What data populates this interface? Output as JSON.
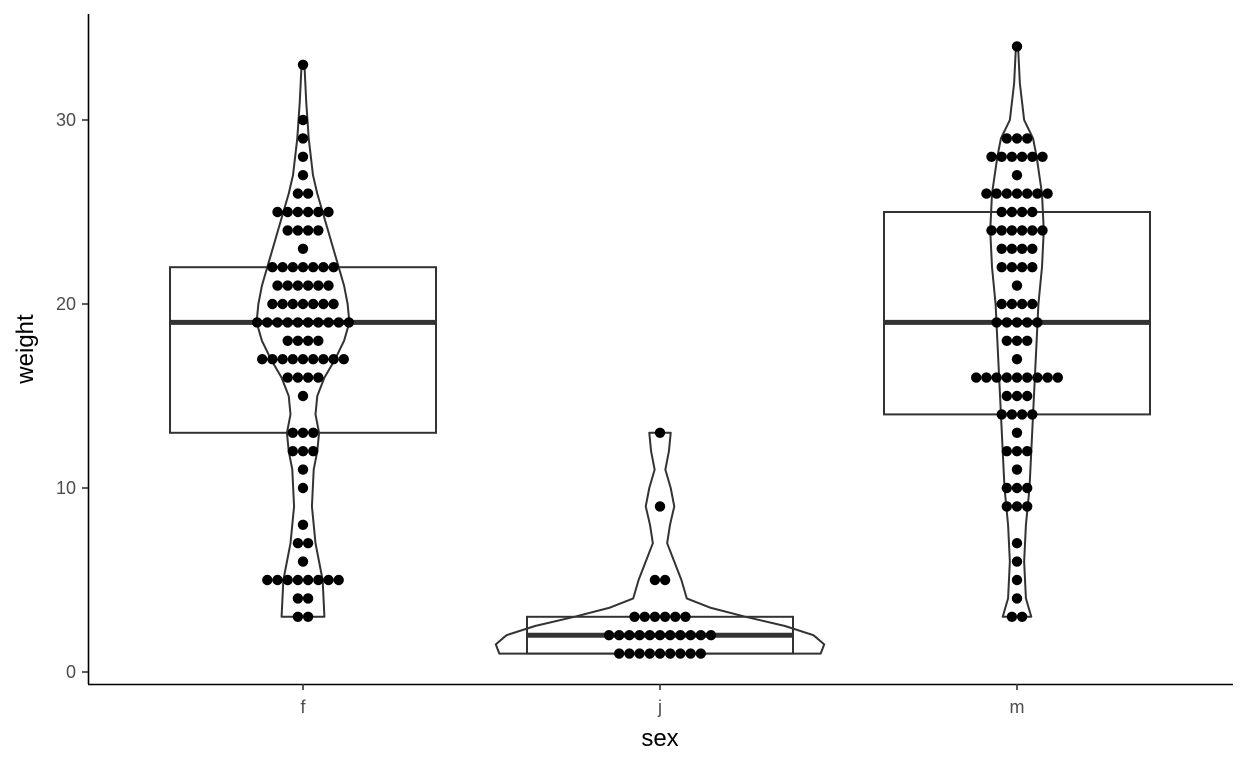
{
  "chart_data": {
    "type": "box",
    "overlays": [
      "violin",
      "dotplot"
    ],
    "xlabel": "sex",
    "ylabel": "weight",
    "categories": [
      "f",
      "j",
      "m"
    ],
    "yticks": [
      0,
      10,
      20,
      30
    ],
    "ylim": [
      -0.6,
      35.5
    ],
    "grid": false,
    "legend": "none",
    "boxes": [
      {
        "category": "f",
        "q1": 13,
        "median": 19,
        "q3": 22
      },
      {
        "category": "j",
        "q1": 1,
        "median": 2,
        "q3": 3
      },
      {
        "category": "m",
        "q1": 14,
        "median": 19,
        "q3": 25
      }
    ],
    "points": {
      "f": [
        {
          "y": 3,
          "n": 2
        },
        {
          "y": 4,
          "n": 2
        },
        {
          "y": 5,
          "n": 8
        },
        {
          "y": 6,
          "n": 1
        },
        {
          "y": 7,
          "n": 2
        },
        {
          "y": 8,
          "n": 1
        },
        {
          "y": 10,
          "n": 1
        },
        {
          "y": 11,
          "n": 1
        },
        {
          "y": 12,
          "n": 3
        },
        {
          "y": 13,
          "n": 3
        },
        {
          "y": 15,
          "n": 1
        },
        {
          "y": 16,
          "n": 4
        },
        {
          "y": 17,
          "n": 9
        },
        {
          "y": 18,
          "n": 4
        },
        {
          "y": 19,
          "n": 10
        },
        {
          "y": 20,
          "n": 7
        },
        {
          "y": 21,
          "n": 6
        },
        {
          "y": 22,
          "n": 7
        },
        {
          "y": 23,
          "n": 1
        },
        {
          "y": 24,
          "n": 4
        },
        {
          "y": 25,
          "n": 6
        },
        {
          "y": 26,
          "n": 2
        },
        {
          "y": 27,
          "n": 1
        },
        {
          "y": 28,
          "n": 1
        },
        {
          "y": 29,
          "n": 1
        },
        {
          "y": 30,
          "n": 1
        },
        {
          "y": 33,
          "n": 1
        }
      ],
      "j": [
        {
          "y": 1,
          "n": 9
        },
        {
          "y": 2,
          "n": 11
        },
        {
          "y": 3,
          "n": 6
        },
        {
          "y": 5,
          "n": 2
        },
        {
          "y": 9,
          "n": 1
        },
        {
          "y": 13,
          "n": 1
        }
      ],
      "m": [
        {
          "y": 3,
          "n": 2
        },
        {
          "y": 4,
          "n": 1
        },
        {
          "y": 5,
          "n": 1
        },
        {
          "y": 6,
          "n": 1
        },
        {
          "y": 7,
          "n": 1
        },
        {
          "y": 9,
          "n": 3
        },
        {
          "y": 10,
          "n": 3
        },
        {
          "y": 11,
          "n": 1
        },
        {
          "y": 12,
          "n": 3
        },
        {
          "y": 13,
          "n": 1
        },
        {
          "y": 14,
          "n": 4
        },
        {
          "y": 15,
          "n": 3
        },
        {
          "y": 16,
          "n": 9
        },
        {
          "y": 17,
          "n": 1
        },
        {
          "y": 18,
          "n": 3
        },
        {
          "y": 19,
          "n": 5
        },
        {
          "y": 20,
          "n": 4
        },
        {
          "y": 21,
          "n": 1
        },
        {
          "y": 22,
          "n": 4
        },
        {
          "y": 23,
          "n": 4
        },
        {
          "y": 24,
          "n": 6
        },
        {
          "y": 25,
          "n": 4
        },
        {
          "y": 26,
          "n": 7
        },
        {
          "y": 27,
          "n": 1
        },
        {
          "y": 28,
          "n": 6
        },
        {
          "y": 29,
          "n": 3
        },
        {
          "y": 34,
          "n": 1
        }
      ]
    },
    "violin_halfwidths": {
      "f": [
        [
          3,
          0.06
        ],
        [
          5,
          0.055
        ],
        [
          7,
          0.035
        ],
        [
          9,
          0.025
        ],
        [
          11,
          0.03
        ],
        [
          12,
          0.04
        ],
        [
          13,
          0.045
        ],
        [
          14,
          0.035
        ],
        [
          15,
          0.04
        ],
        [
          16,
          0.06
        ],
        [
          17,
          0.09
        ],
        [
          18,
          0.115
        ],
        [
          19,
          0.13
        ],
        [
          20,
          0.125
        ],
        [
          21,
          0.115
        ],
        [
          22,
          0.1
        ],
        [
          23,
          0.085
        ],
        [
          24,
          0.07
        ],
        [
          25,
          0.055
        ],
        [
          26,
          0.04
        ],
        [
          27,
          0.028
        ],
        [
          29,
          0.016
        ],
        [
          31,
          0.009
        ],
        [
          33,
          0.004
        ]
      ],
      "j": [
        [
          1,
          0.45
        ],
        [
          1.5,
          0.46
        ],
        [
          2,
          0.43
        ],
        [
          2.5,
          0.35
        ],
        [
          3,
          0.24
        ],
        [
          3.5,
          0.14
        ],
        [
          4,
          0.075
        ],
        [
          5,
          0.06
        ],
        [
          6,
          0.04
        ],
        [
          7,
          0.02
        ],
        [
          8,
          0.028
        ],
        [
          9,
          0.04
        ],
        [
          10,
          0.03
        ],
        [
          11,
          0.015
        ],
        [
          12,
          0.025
        ],
        [
          13,
          0.03
        ]
      ],
      "m": [
        [
          3,
          0.04
        ],
        [
          4,
          0.025
        ],
        [
          6,
          0.02
        ],
        [
          8,
          0.025
        ],
        [
          10,
          0.035
        ],
        [
          12,
          0.04
        ],
        [
          14,
          0.045
        ],
        [
          16,
          0.05
        ],
        [
          18,
          0.055
        ],
        [
          20,
          0.06
        ],
        [
          22,
          0.07
        ],
        [
          24,
          0.075
        ],
        [
          26,
          0.07
        ],
        [
          28,
          0.055
        ],
        [
          29,
          0.045
        ],
        [
          30,
          0.02
        ],
        [
          32,
          0.008
        ],
        [
          34,
          0.003
        ]
      ]
    }
  }
}
